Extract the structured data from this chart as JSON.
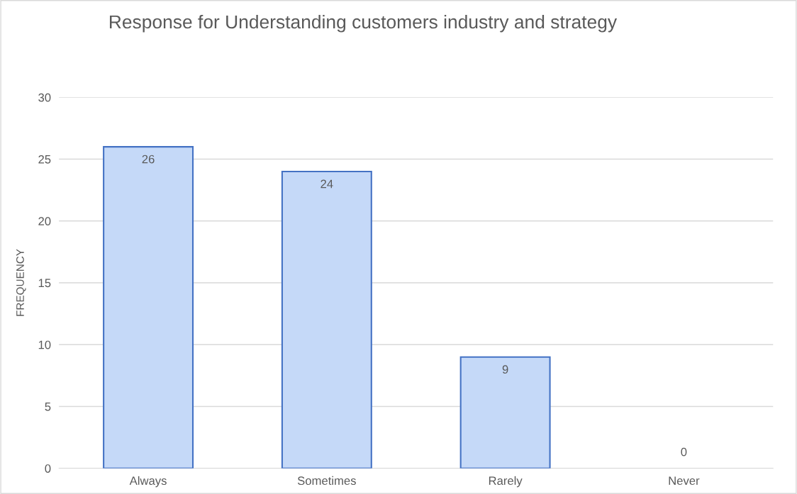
{
  "chart_data": {
    "type": "bar",
    "title": "Response for Understanding customers industry and strategy",
    "ylabel": "FREQUENCY",
    "categories": [
      "Always",
      "Sometimes",
      "Rarely",
      "Never"
    ],
    "values": [
      26,
      24,
      9,
      0
    ],
    "color": "#c5d9f8",
    "ylim": [
      0,
      30
    ],
    "yticks": [
      0,
      5,
      10,
      15,
      20,
      25,
      30
    ],
    "grid": "y",
    "data_labels": true
  }
}
